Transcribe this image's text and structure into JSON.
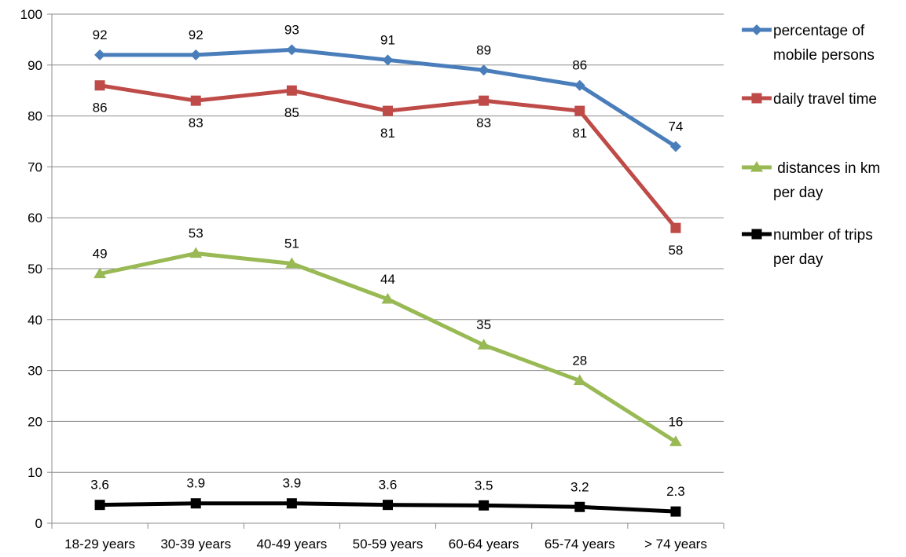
{
  "chart_data": {
    "type": "line",
    "title": "",
    "xlabel": "",
    "ylabel": "",
    "ylim": [
      0,
      100
    ],
    "yticks": [
      0,
      10,
      20,
      30,
      40,
      50,
      60,
      70,
      80,
      90,
      100
    ],
    "grid": true,
    "legend_position": "right",
    "categories": [
      "18-29 years",
      "30-39 years",
      "40-49 years",
      "50-59 years",
      "60-64 years",
      "65-74 years",
      "> 74 years"
    ],
    "series": [
      {
        "name": "percentage of mobile persons",
        "legend_lines": [
          "percentage of",
          "mobile persons"
        ],
        "values": [
          92,
          92,
          93,
          91,
          89,
          86,
          74
        ],
        "value_labels": [
          "92",
          "92",
          "93",
          "91",
          "89",
          "86",
          "74"
        ],
        "label_position": "above",
        "color": "#4a7ebb",
        "marker": "diamond"
      },
      {
        "name": "daily travel time",
        "legend_lines": [
          "daily travel time"
        ],
        "values": [
          86,
          83,
          85,
          81,
          83,
          81,
          58
        ],
        "value_labels": [
          "86",
          "83",
          "85",
          "81",
          "83",
          "81",
          "58"
        ],
        "label_position": "below",
        "color": "#be4b48",
        "marker": "square"
      },
      {
        "name": "distances in km per day",
        "legend_lines": [
          " distances in km",
          "per day"
        ],
        "values": [
          49,
          53,
          51,
          44,
          35,
          28,
          16
        ],
        "value_labels": [
          "49",
          "53",
          "51",
          "44",
          "35",
          "28",
          "16"
        ],
        "label_position": "above",
        "color": "#98b954",
        "marker": "triangle"
      },
      {
        "name": "number of trips per day",
        "legend_lines": [
          "number of trips",
          "per day"
        ],
        "values": [
          3.6,
          3.9,
          3.9,
          3.6,
          3.5,
          3.2,
          2.3
        ],
        "value_labels": [
          "3.6",
          "3.9",
          "3.9",
          "3.6",
          "3.5",
          "3.2",
          "2.3"
        ],
        "label_position": "above",
        "color": "#000000",
        "marker": "square"
      }
    ]
  }
}
